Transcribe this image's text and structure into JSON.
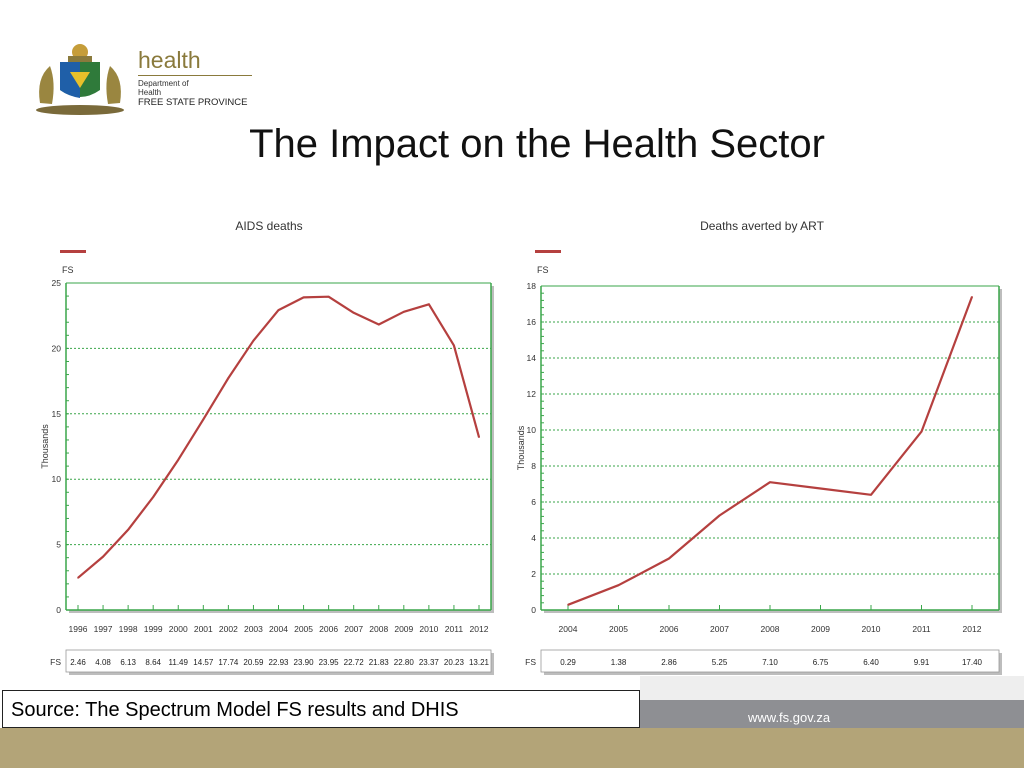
{
  "logo": {
    "health": "health",
    "department_line1": "Department of",
    "department_line2": "Health",
    "province": "FREE STATE PROVINCE"
  },
  "title": "The Impact on the Health Sector",
  "source": "Source: The  Spectrum Model FS results and DHIS",
  "footer": {
    "url": "www.fs.gov.za"
  },
  "colors": {
    "line": "#b5403f",
    "grid": "#3aa64a",
    "footer": "#b3a478"
  },
  "chart_data": [
    {
      "type": "line",
      "title": "AIDS deaths",
      "ylabel": "Thousands",
      "series_label": "FS",
      "ylim": [
        0,
        25
      ],
      "yticks": [
        0,
        5,
        10,
        15,
        20,
        25
      ],
      "grid": true,
      "categories": [
        "1996",
        "1997",
        "1998",
        "1999",
        "2000",
        "2001",
        "2002",
        "2003",
        "2004",
        "2005",
        "2006",
        "2007",
        "2008",
        "2009",
        "2010",
        "2011",
        "2012"
      ],
      "series": [
        {
          "name": "FS",
          "values": [
            2.46,
            4.08,
            6.13,
            8.64,
            11.49,
            14.57,
            17.74,
            20.59,
            22.93,
            23.9,
            23.95,
            22.72,
            21.83,
            22.8,
            23.37,
            20.23,
            13.21
          ]
        }
      ],
      "table_values": [
        "2.46",
        "4.08",
        "6.13",
        "8.64",
        "11.49",
        "14.57",
        "17.74",
        "20.59",
        "22.93",
        "23.90",
        "23.95",
        "22.72",
        "21.83",
        "22.80",
        "23.37",
        "20.23",
        "13.21"
      ]
    },
    {
      "type": "line",
      "title": "Deaths averted by ART",
      "ylabel": "Thousands",
      "series_label": "FS",
      "ylim": [
        0,
        18
      ],
      "yticks": [
        0,
        2,
        4,
        6,
        8,
        10,
        12,
        14,
        16,
        18
      ],
      "grid": true,
      "categories": [
        "2004",
        "2005",
        "2006",
        "2007",
        "2008",
        "2009",
        "2010",
        "2011",
        "2012"
      ],
      "series": [
        {
          "name": "FS",
          "values": [
            0.29,
            1.38,
            2.86,
            5.25,
            7.1,
            6.75,
            6.4,
            9.91,
            17.4
          ]
        }
      ],
      "table_values": [
        "0.29",
        "1.38",
        "2.86",
        "5.25",
        "7.10",
        "6.75",
        "6.40",
        "9.91",
        "17.40"
      ]
    }
  ]
}
